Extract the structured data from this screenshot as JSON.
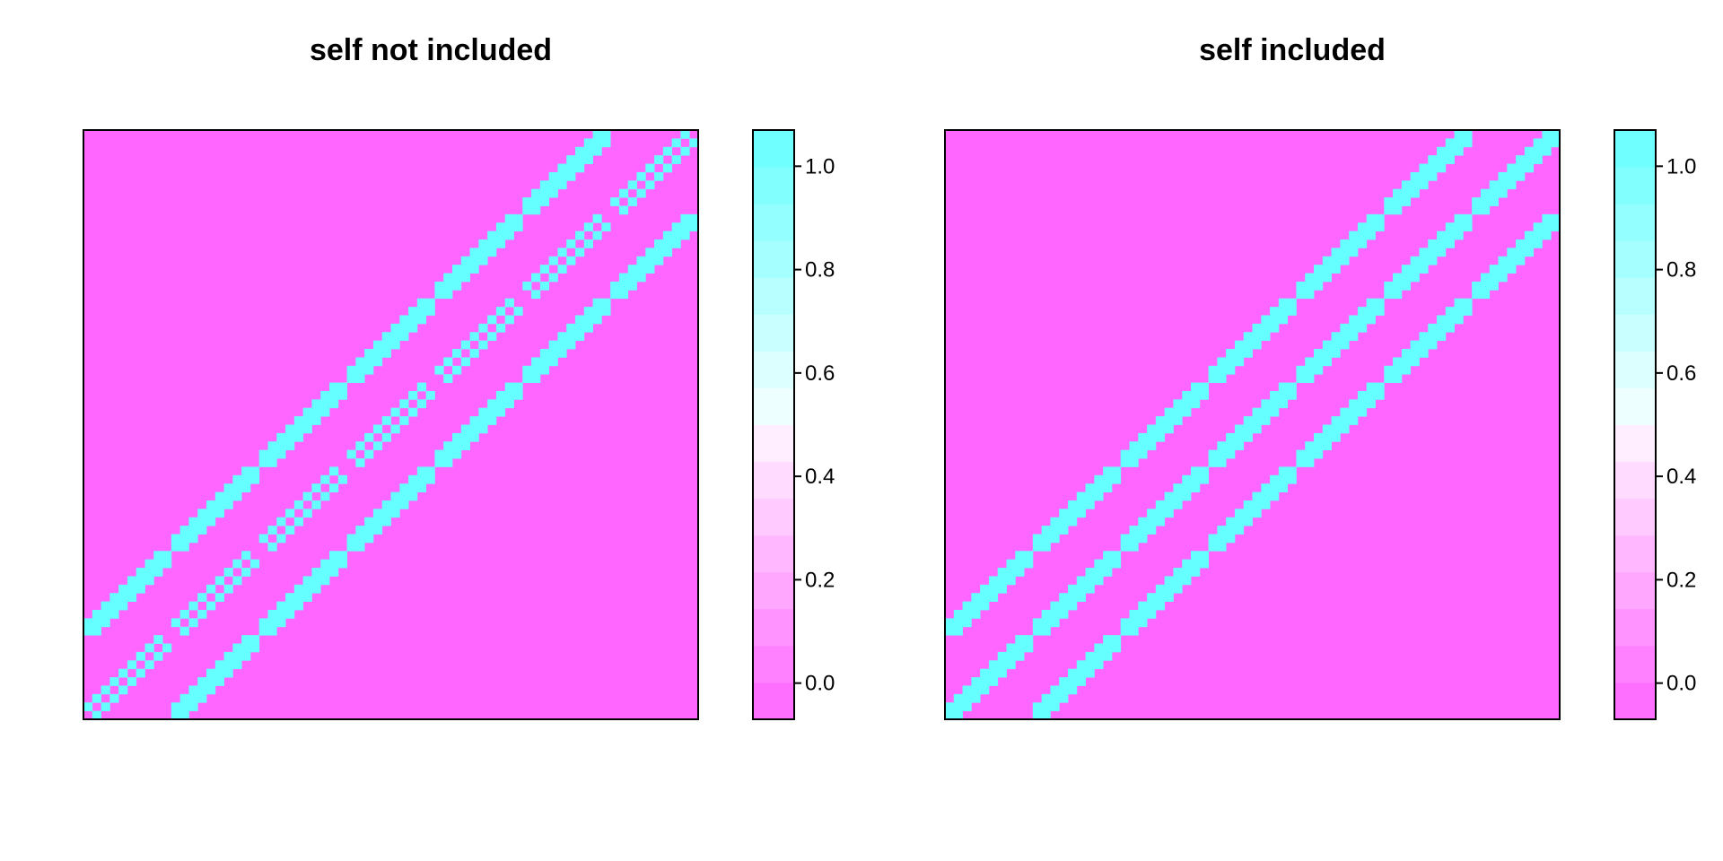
{
  "chart_data": [
    {
      "type": "heatmap",
      "title": "self not included",
      "grid_size": 70,
      "self_included": false,
      "value_range": [
        -0.07,
        1.07
      ],
      "colorbar_ticks": [
        "0.0",
        "0.2",
        "0.4",
        "0.6",
        "0.8",
        "1.0"
      ],
      "colorbar_tick_values": [
        0,
        0.2,
        0.4,
        0.6,
        0.8,
        1.0
      ],
      "low_color": "#ff66ff",
      "high_color": "#66ffff",
      "mid_color": "#ffffff",
      "axes_shown": false,
      "description_values": "binary adjacency matrix (0 or 1) of a 10x7 grid neighborhood"
    },
    {
      "type": "heatmap",
      "title": "self included",
      "grid_size": 70,
      "self_included": true,
      "value_range": [
        -0.07,
        1.07
      ],
      "colorbar_ticks": [
        "0.0",
        "0.2",
        "0.4",
        "0.6",
        "0.8",
        "1.0"
      ],
      "colorbar_tick_values": [
        0,
        0.2,
        0.4,
        0.6,
        0.8,
        1.0
      ],
      "low_color": "#ff66ff",
      "high_color": "#66ffff",
      "mid_color": "#ffffff",
      "axes_shown": false
    }
  ]
}
